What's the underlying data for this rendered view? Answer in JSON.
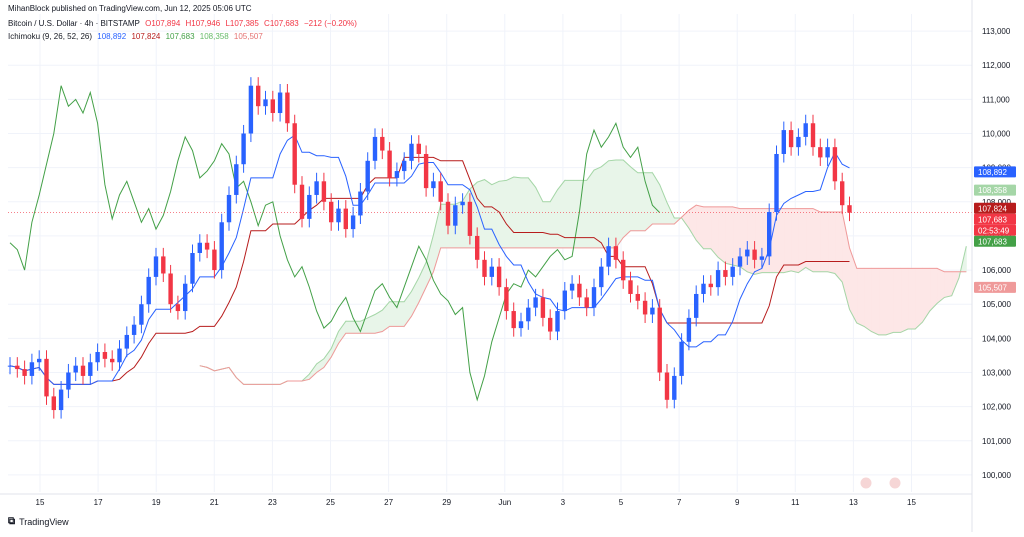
{
  "header": {
    "published": "MihanBlock published on TradingView.com, Jun 12, 2025 05:06 UTC",
    "symbol": "Bitcoin / U.S. Dollar · 4h · BITSTAMP",
    "ohlc_o": "O107,894",
    "ohlc_h": "H107,946",
    "ohlc_l": "L107,385",
    "ohlc_c": "C107,683",
    "change": "−212 (−0.20%)",
    "ichimoku_label": "Ichimoku (9, 26, 52, 26)",
    "ich_v1": "108,892",
    "ich_v2": "107,824",
    "ich_v3": "107,683",
    "ich_v4": "108,358",
    "ich_v5": "105,507"
  },
  "footer": {
    "brand": "TradingView"
  },
  "colors": {
    "up": "#2962ff",
    "down": "#f23645",
    "conversion": "#2962ff",
    "base": "#b71c1c",
    "lagging": "#43a047",
    "leadA": "#a5d6a7",
    "leadB": "#ef9a9a",
    "cloudUp": "#e8f5e9",
    "cloudDown": "#fde7e7",
    "grid": "#f0f3fa"
  },
  "chart_data": {
    "type": "candlestick",
    "title": "Bitcoin / U.S. Dollar · 4h · BITSTAMP",
    "ylim": [
      99500,
      113500
    ],
    "y_ticks": [
      "100,000",
      "101,000",
      "102,000",
      "103,000",
      "104,000",
      "105,000",
      "106,000",
      "107,000",
      "108,000",
      "109,000",
      "110,000",
      "111,000",
      "112,000",
      "113,000"
    ],
    "x_ticks": [
      "15",
      "17",
      "19",
      "21",
      "23",
      "25",
      "27",
      "29",
      "Jun",
      "3",
      "5",
      "7",
      "9",
      "11",
      "13",
      "15"
    ],
    "price_badges": [
      {
        "label": "108,892",
        "value": 108892,
        "color": "#2962ff"
      },
      {
        "label": "108,358",
        "value": 108358,
        "color": "#a5d6a7"
      },
      {
        "label": "107,824",
        "value": 107824,
        "color": "#b71c1c"
      },
      {
        "label": "107,683",
        "value": 107683,
        "color": "#f23645"
      },
      {
        "label": "02:53:49",
        "value": 107683,
        "color": "#f23645"
      },
      {
        "label": "107,683",
        "value": 107683,
        "color": "#43a047"
      },
      {
        "label": "105,507",
        "value": 105507,
        "color": "#ef9a9a"
      }
    ],
    "close_points": [
      [
        0,
        103200
      ],
      [
        1,
        103100
      ],
      [
        2,
        102900
      ],
      [
        3,
        103300
      ],
      [
        4,
        103400
      ],
      [
        5,
        102300
      ],
      [
        6,
        101900
      ],
      [
        7,
        102500
      ],
      [
        8,
        103000
      ],
      [
        9,
        103200
      ],
      [
        10,
        102900
      ],
      [
        11,
        103300
      ],
      [
        12,
        103600
      ],
      [
        13,
        103400
      ],
      [
        14,
        103300
      ],
      [
        15,
        103700
      ],
      [
        16,
        104100
      ],
      [
        17,
        104400
      ],
      [
        18,
        105000
      ],
      [
        19,
        105800
      ],
      [
        20,
        106400
      ],
      [
        21,
        105900
      ],
      [
        22,
        105000
      ],
      [
        23,
        104800
      ],
      [
        24,
        105600
      ],
      [
        25,
        106500
      ],
      [
        26,
        106800
      ],
      [
        27,
        106600
      ],
      [
        28,
        106000
      ],
      [
        29,
        107400
      ],
      [
        30,
        108200
      ],
      [
        31,
        109100
      ],
      [
        32,
        110000
      ],
      [
        33,
        111400
      ],
      [
        34,
        110800
      ],
      [
        35,
        111000
      ],
      [
        36,
        110600
      ],
      [
        37,
        111200
      ],
      [
        38,
        110300
      ],
      [
        39,
        108500
      ],
      [
        40,
        107500
      ],
      [
        41,
        108200
      ],
      [
        42,
        108600
      ],
      [
        43,
        108000
      ],
      [
        44,
        107400
      ],
      [
        45,
        107800
      ],
      [
        46,
        107200
      ],
      [
        47,
        107600
      ],
      [
        48,
        108300
      ],
      [
        49,
        109200
      ],
      [
        50,
        109900
      ],
      [
        51,
        109500
      ],
      [
        52,
        108700
      ],
      [
        53,
        108900
      ],
      [
        54,
        109200
      ],
      [
        55,
        109700
      ],
      [
        56,
        109400
      ],
      [
        57,
        108400
      ],
      [
        58,
        108600
      ],
      [
        59,
        108000
      ],
      [
        60,
        107300
      ],
      [
        61,
        107900
      ],
      [
        62,
        108000
      ],
      [
        63,
        107000
      ],
      [
        64,
        106300
      ],
      [
        65,
        105800
      ],
      [
        66,
        106100
      ],
      [
        67,
        105500
      ],
      [
        68,
        104800
      ],
      [
        69,
        104300
      ],
      [
        70,
        104500
      ],
      [
        71,
        104900
      ],
      [
        72,
        105200
      ],
      [
        73,
        104600
      ],
      [
        74,
        104200
      ],
      [
        75,
        104800
      ],
      [
        76,
        105400
      ],
      [
        77,
        105600
      ],
      [
        78,
        105200
      ],
      [
        79,
        104900
      ],
      [
        80,
        105500
      ],
      [
        81,
        106100
      ],
      [
        82,
        106700
      ],
      [
        83,
        106300
      ],
      [
        84,
        105700
      ],
      [
        85,
        105300
      ],
      [
        86,
        105100
      ],
      [
        87,
        104700
      ],
      [
        88,
        104900
      ],
      [
        89,
        103000
      ],
      [
        90,
        102200
      ],
      [
        91,
        102900
      ],
      [
        92,
        103900
      ],
      [
        93,
        104600
      ],
      [
        94,
        105300
      ],
      [
        95,
        105600
      ],
      [
        96,
        105500
      ],
      [
        97,
        106000
      ],
      [
        98,
        105800
      ],
      [
        99,
        106100
      ],
      [
        100,
        106400
      ],
      [
        101,
        106600
      ],
      [
        102,
        106300
      ],
      [
        103,
        106400
      ],
      [
        104,
        107700
      ],
      [
        105,
        109400
      ],
      [
        106,
        110100
      ],
      [
        107,
        109600
      ],
      [
        108,
        109900
      ],
      [
        109,
        110300
      ],
      [
        110,
        109600
      ],
      [
        111,
        109300
      ],
      [
        112,
        109600
      ],
      [
        113,
        108600
      ],
      [
        114,
        107900
      ],
      [
        115,
        107683
      ]
    ]
  }
}
